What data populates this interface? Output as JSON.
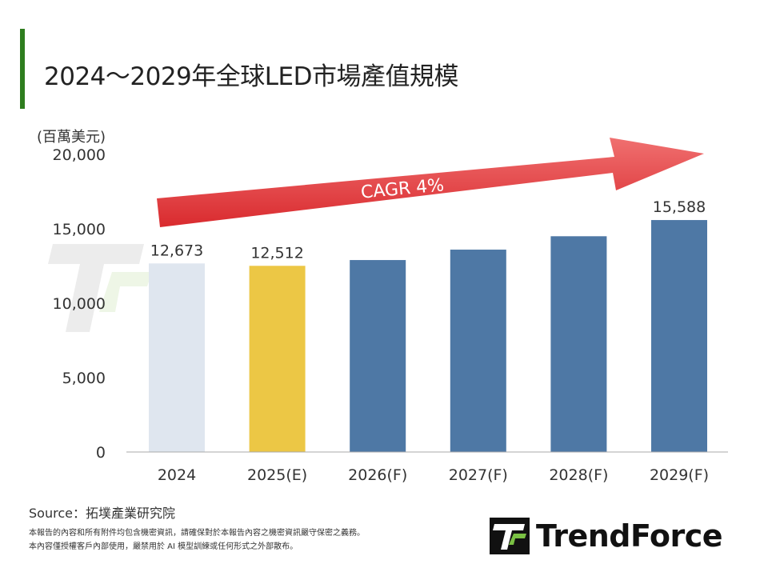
{
  "title": "2024～2029年全球LED市場產值規模",
  "accent_color": "#2e7d1e",
  "chart_data": {
    "type": "bar",
    "title": "2024～2029年全球LED市場產值規模",
    "ylabel": "(百萬美元)",
    "xlabel": "",
    "ylim": [
      0,
      20000
    ],
    "yticks": [
      "0",
      "5,000",
      "10,000",
      "15,000",
      "20,000"
    ],
    "ytick_values": [
      0,
      5000,
      10000,
      15000,
      20000
    ],
    "grid": false,
    "categories": [
      "2024",
      "2025(E)",
      "2026(F)",
      "2027(F)",
      "2028(F)",
      "2029(F)"
    ],
    "values": [
      12673,
      12512,
      12900,
      13600,
      14500,
      15588
    ],
    "data_labels": [
      "12,673",
      "12,512",
      "",
      "",
      "",
      "15,588"
    ],
    "bar_colors": [
      "#dfe6ef",
      "#ecc745",
      "#4e78a5",
      "#4e78a5",
      "#4e78a5",
      "#4e78a5"
    ],
    "annotation": "CAGR 4%",
    "arrow_color": "#e0484b"
  },
  "source": "Source：拓墣產業研究院",
  "disclaimer": [
    "本報告的內容和所有附件均包含機密資訊，請確保對於本報告內容之機密資訊嚴守保密之義務。",
    "本內容僅授權客戶內部使用，嚴禁用於 AI 模型訓練或任何形式之外部散布。"
  ],
  "logo": {
    "text": "TrendForce",
    "watermark": "TrendForce"
  }
}
